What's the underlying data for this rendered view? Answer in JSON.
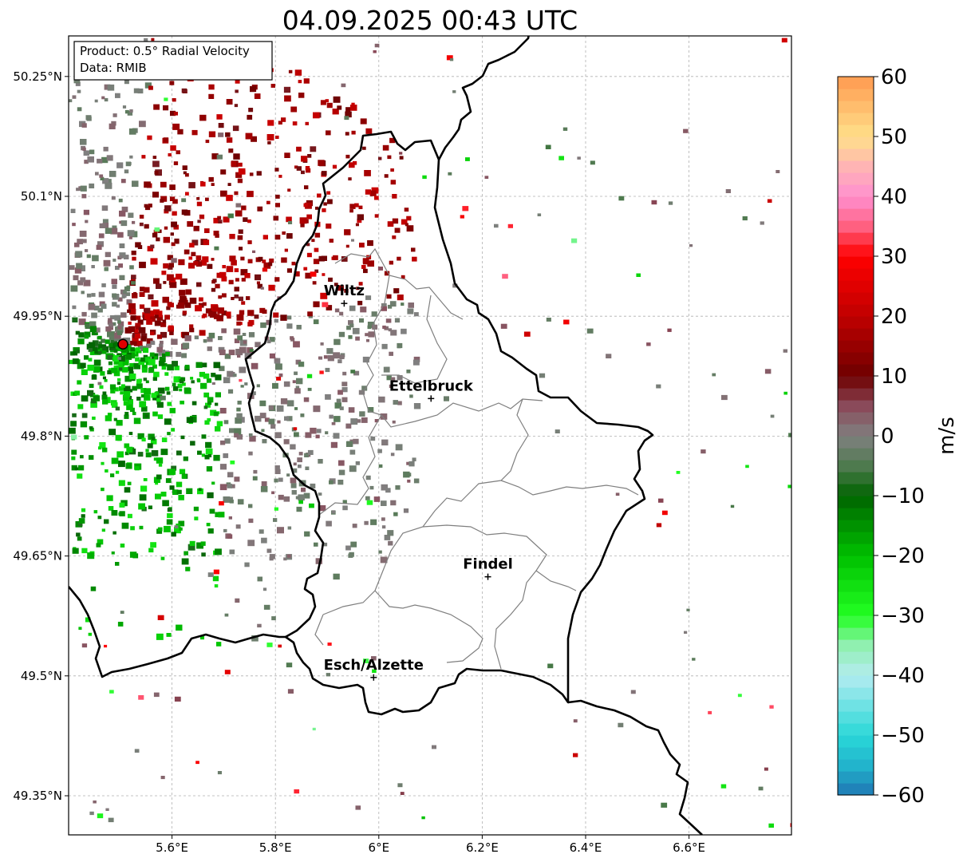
{
  "title": "04.09.2025 00:43 UTC",
  "info_box": {
    "product": "Product: 0.5° Radial Velocity",
    "data": "Data: RMIB"
  },
  "map": {
    "lon_range": [
      5.4,
      6.8
    ],
    "lat_range": [
      49.3,
      50.3
    ],
    "x_ticks": [
      {
        "value": 5.6,
        "label": "5.6°E"
      },
      {
        "value": 5.8,
        "label": "5.8°E"
      },
      {
        "value": 6.0,
        "label": "6°E"
      },
      {
        "value": 6.2,
        "label": "6.2°E"
      },
      {
        "value": 6.4,
        "label": "6.4°E"
      },
      {
        "value": 6.6,
        "label": "6.6°E"
      }
    ],
    "y_ticks": [
      {
        "value": 50.25,
        "label": "50.25°N"
      },
      {
        "value": 50.1,
        "label": "50.1°N"
      },
      {
        "value": 49.95,
        "label": "49.95°N"
      },
      {
        "value": 49.8,
        "label": "49.8°N"
      },
      {
        "value": 49.65,
        "label": "49.65°N"
      },
      {
        "value": 49.5,
        "label": "49.5°N"
      },
      {
        "value": 49.35,
        "label": "49.35°N"
      }
    ],
    "radar_site": {
      "lon": 5.505,
      "lat": 49.915
    },
    "cities": [
      {
        "name": "Wiltz",
        "lon": 5.933,
        "lat": 49.966
      },
      {
        "name": "Ettelbruck",
        "lon": 6.101,
        "lat": 49.847
      },
      {
        "name": "Findel",
        "lon": 6.211,
        "lat": 49.624
      },
      {
        "name": "Esch/Alzette",
        "lon": 5.99,
        "lat": 49.498
      }
    ]
  },
  "colorbar": {
    "unit": "m/s",
    "min": -60,
    "max": 60,
    "ticks": [
      {
        "value": 60,
        "label": "60"
      },
      {
        "value": 50,
        "label": "50"
      },
      {
        "value": 40,
        "label": "40"
      },
      {
        "value": 30,
        "label": "30"
      },
      {
        "value": 20,
        "label": "20"
      },
      {
        "value": 10,
        "label": "10"
      },
      {
        "value": 0,
        "label": "0"
      },
      {
        "value": -10,
        "label": "−10"
      },
      {
        "value": -20,
        "label": "−20"
      },
      {
        "value": -30,
        "label": "−30"
      },
      {
        "value": -40,
        "label": "−40"
      },
      {
        "value": -50,
        "label": "−50"
      },
      {
        "value": -60,
        "label": "−60"
      }
    ],
    "stops": [
      {
        "value": -60,
        "color": "#1f77b4"
      },
      {
        "value": -55,
        "color": "#22b4cc"
      },
      {
        "value": -50,
        "color": "#2ad8d8"
      },
      {
        "value": -40,
        "color": "#b4ecf0"
      },
      {
        "value": -35,
        "color": "#90f0b0"
      },
      {
        "value": -30,
        "color": "#22ff22"
      },
      {
        "value": -20,
        "color": "#00c000"
      },
      {
        "value": -10,
        "color": "#006400"
      },
      {
        "value": -5,
        "color": "#4e7a4e"
      },
      {
        "value": 0,
        "color": "#808080"
      },
      {
        "value": 5,
        "color": "#8a4a5a"
      },
      {
        "value": 10,
        "color": "#6e0000"
      },
      {
        "value": 20,
        "color": "#c00000"
      },
      {
        "value": 30,
        "color": "#ff0000"
      },
      {
        "value": 35,
        "color": "#ff6080"
      },
      {
        "value": 40,
        "color": "#ff90d0"
      },
      {
        "value": 45,
        "color": "#ffb4b4"
      },
      {
        "value": 50,
        "color": "#ffe08a"
      },
      {
        "value": 60,
        "color": "#ff9a50"
      }
    ]
  }
}
